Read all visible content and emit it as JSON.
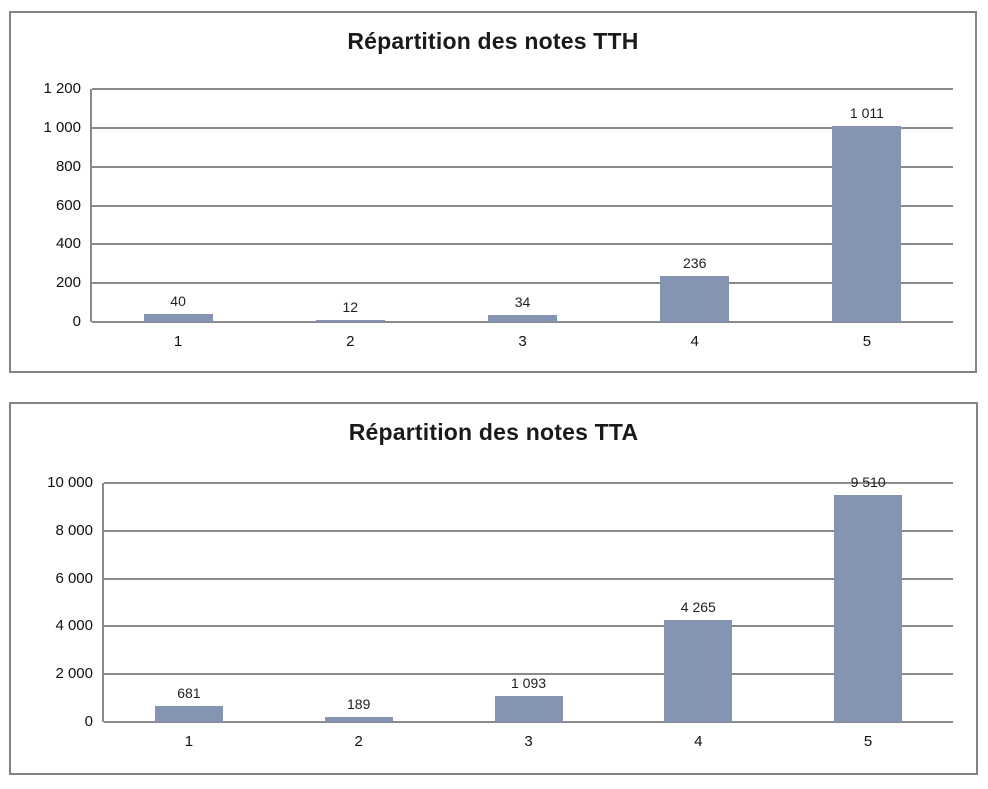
{
  "page": {
    "background_color": "#ffffff"
  },
  "style": {
    "bar_color": "#8494B2",
    "gridline_color": "#8A8A8A",
    "axis_color": "#848484",
    "frame_border_color": "#848484",
    "text_color": "#1a1a1a"
  },
  "chart_data": [
    {
      "type": "bar",
      "title": "Répartition des notes TTH",
      "categories": [
        "1",
        "2",
        "3",
        "4",
        "5"
      ],
      "values": [
        40,
        12,
        34,
        236,
        1011
      ],
      "value_labels": [
        "40",
        "12",
        "34",
        "236",
        "1 011"
      ],
      "xlabel": "",
      "ylabel": "",
      "ylim": [
        0,
        1200
      ],
      "ytick_interval": 200,
      "ytick_labels": [
        "0",
        "200",
        "400",
        "600",
        "800",
        "1 000",
        "1 200"
      ],
      "grid": true,
      "legend": "none",
      "bar_color": "#8494B2"
    },
    {
      "type": "bar",
      "title": "Répartition des notes TTA",
      "categories": [
        "1",
        "2",
        "3",
        "4",
        "5"
      ],
      "values": [
        681,
        189,
        1093,
        4265,
        9510
      ],
      "value_labels": [
        "681",
        "189",
        "1 093",
        "4 265",
        "9 510"
      ],
      "xlabel": "",
      "ylabel": "",
      "ylim": [
        0,
        10000
      ],
      "ytick_interval": 2000,
      "ytick_labels": [
        "0",
        "2 000",
        "4 000",
        "6 000",
        "8 000",
        "10 000"
      ],
      "grid": true,
      "legend": "none",
      "bar_color": "#8494B2"
    }
  ]
}
